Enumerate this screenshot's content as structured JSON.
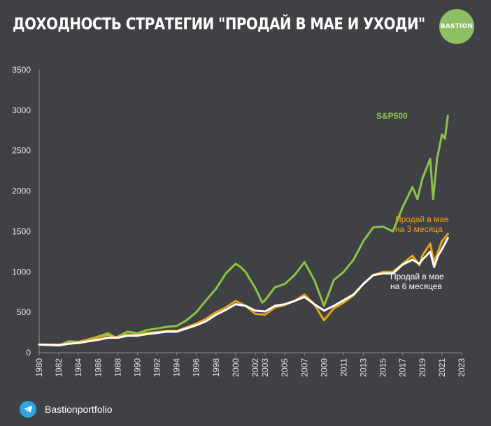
{
  "header": {
    "title": "ДОХОДНОСТЬ СТРАТЕГИИ \"ПРОДАЙ В МАЕ И УХОДИ\"",
    "logo_text": "BASTION"
  },
  "footer": {
    "icon": "telegram-icon",
    "handle": "Bastionportfolio"
  },
  "colors": {
    "background": "#404145",
    "sp500": "#8bc34a",
    "sell3": "#e8a317",
    "sell6": "#ffffff",
    "logo": "#8fbf63",
    "telegram": "#2ca5e0"
  },
  "chart_data": {
    "type": "line",
    "ylim": [
      0,
      3500
    ],
    "xlim": [
      1980,
      2023
    ],
    "yticks": [
      "0",
      "500",
      "1000",
      "1500",
      "2000",
      "2500",
      "3000",
      "3500"
    ],
    "xticks": [
      "1980",
      "1982",
      "1984",
      "1986",
      "1988",
      "1990",
      "1992",
      "1994",
      "1996",
      "1998",
      "2000",
      "2002",
      "2003",
      "2005",
      "2007",
      "2009",
      "2011",
      "2013",
      "2015",
      "2017",
      "2019",
      "2021",
      "2023"
    ],
    "grid": false,
    "series": [
      {
        "name": "S&P500",
        "color": "#8bc34a",
        "label_lines": [
          "S&P500"
        ],
        "points": [
          [
            1980,
            100
          ],
          [
            1981,
            95
          ],
          [
            1982,
            90
          ],
          [
            1983,
            140
          ],
          [
            1984,
            135
          ],
          [
            1985,
            165
          ],
          [
            1986,
            200
          ],
          [
            1987,
            240
          ],
          [
            1987.8,
            185
          ],
          [
            1988,
            200
          ],
          [
            1989,
            260
          ],
          [
            1990,
            240
          ],
          [
            1991,
            280
          ],
          [
            1992,
            300
          ],
          [
            1993,
            320
          ],
          [
            1994,
            330
          ],
          [
            1995,
            400
          ],
          [
            1996,
            500
          ],
          [
            1997,
            650
          ],
          [
            1998,
            790
          ],
          [
            1999,
            980
          ],
          [
            2000,
            1100
          ],
          [
            2000.5,
            1060
          ],
          [
            2001,
            1000
          ],
          [
            2002,
            800
          ],
          [
            2002.7,
            620
          ],
          [
            2003,
            650
          ],
          [
            2004,
            810
          ],
          [
            2005,
            850
          ],
          [
            2006,
            960
          ],
          [
            2007,
            1120
          ],
          [
            2008,
            900
          ],
          [
            2009,
            580
          ],
          [
            2010,
            900
          ],
          [
            2011,
            1000
          ],
          [
            2012,
            1150
          ],
          [
            2013,
            1380
          ],
          [
            2014,
            1550
          ],
          [
            2015,
            1560
          ],
          [
            2016,
            1500
          ],
          [
            2017,
            1800
          ],
          [
            2018,
            2050
          ],
          [
            2018.5,
            1900
          ],
          [
            2019,
            2150
          ],
          [
            2019.8,
            2400
          ],
          [
            2020.1,
            1900
          ],
          [
            2020.5,
            2400
          ],
          [
            2021,
            2700
          ],
          [
            2021.3,
            2650
          ],
          [
            2021.6,
            2930
          ]
        ]
      },
      {
        "name": "Продай в мае на 3 месяца",
        "color": "#e8a317",
        "label_lines": [
          "Продай  в мае",
          "на 3 месяца"
        ],
        "points": [
          [
            1980,
            100
          ],
          [
            1981,
            100
          ],
          [
            1982,
            100
          ],
          [
            1983,
            115
          ],
          [
            1984,
            130
          ],
          [
            1985,
            160
          ],
          [
            1986,
            190
          ],
          [
            1987,
            220
          ],
          [
            1987.8,
            190
          ],
          [
            1988,
            195
          ],
          [
            1989,
            225
          ],
          [
            1990,
            220
          ],
          [
            1991,
            245
          ],
          [
            1992,
            255
          ],
          [
            1993,
            270
          ],
          [
            1994,
            270
          ],
          [
            1995,
            315
          ],
          [
            1996,
            360
          ],
          [
            1997,
            420
          ],
          [
            1998,
            500
          ],
          [
            1999,
            560
          ],
          [
            2000,
            640
          ],
          [
            2001,
            580
          ],
          [
            2002,
            480
          ],
          [
            2003,
            470
          ],
          [
            2004,
            560
          ],
          [
            2005,
            590
          ],
          [
            2006,
            640
          ],
          [
            2007,
            720
          ],
          [
            2008,
            600
          ],
          [
            2009,
            400
          ],
          [
            2010,
            550
          ],
          [
            2011,
            620
          ],
          [
            2012,
            710
          ],
          [
            2013,
            850
          ],
          [
            2014,
            960
          ],
          [
            2015,
            1000
          ],
          [
            2016,
            1000
          ],
          [
            2017,
            1100
          ],
          [
            2018,
            1200
          ],
          [
            2018.7,
            1080
          ],
          [
            2019,
            1200
          ],
          [
            2019.8,
            1350
          ],
          [
            2020.2,
            1120
          ],
          [
            2020.6,
            1250
          ],
          [
            2021,
            1380
          ],
          [
            2021.6,
            1470
          ]
        ]
      },
      {
        "name": "Продай в мае на 6 месяцев",
        "color": "#ffffff",
        "label_lines": [
          "Продай  в мае",
          "на 6 месяцев"
        ],
        "points": [
          [
            1980,
            100
          ],
          [
            1981,
            95
          ],
          [
            1982,
            90
          ],
          [
            1983,
            110
          ],
          [
            1984,
            120
          ],
          [
            1985,
            140
          ],
          [
            1986,
            160
          ],
          [
            1987,
            185
          ],
          [
            1988,
            185
          ],
          [
            1989,
            210
          ],
          [
            1990,
            210
          ],
          [
            1991,
            230
          ],
          [
            1992,
            245
          ],
          [
            1993,
            260
          ],
          [
            1994,
            260
          ],
          [
            1995,
            300
          ],
          [
            1996,
            340
          ],
          [
            1997,
            390
          ],
          [
            1998,
            470
          ],
          [
            1999,
            530
          ],
          [
            2000,
            600
          ],
          [
            2001,
            580
          ],
          [
            2002,
            520
          ],
          [
            2003,
            510
          ],
          [
            2004,
            580
          ],
          [
            2005,
            600
          ],
          [
            2006,
            640
          ],
          [
            2007,
            690
          ],
          [
            2008,
            600
          ],
          [
            2009,
            520
          ],
          [
            2010,
            580
          ],
          [
            2011,
            650
          ],
          [
            2012,
            720
          ],
          [
            2013,
            850
          ],
          [
            2014,
            960
          ],
          [
            2015,
            980
          ],
          [
            2016,
            980
          ],
          [
            2017,
            1090
          ],
          [
            2018,
            1150
          ],
          [
            2018.7,
            1100
          ],
          [
            2019,
            1150
          ],
          [
            2019.8,
            1250
          ],
          [
            2020.2,
            1060
          ],
          [
            2020.6,
            1200
          ],
          [
            2021,
            1280
          ],
          [
            2021.6,
            1420
          ]
        ]
      }
    ]
  }
}
